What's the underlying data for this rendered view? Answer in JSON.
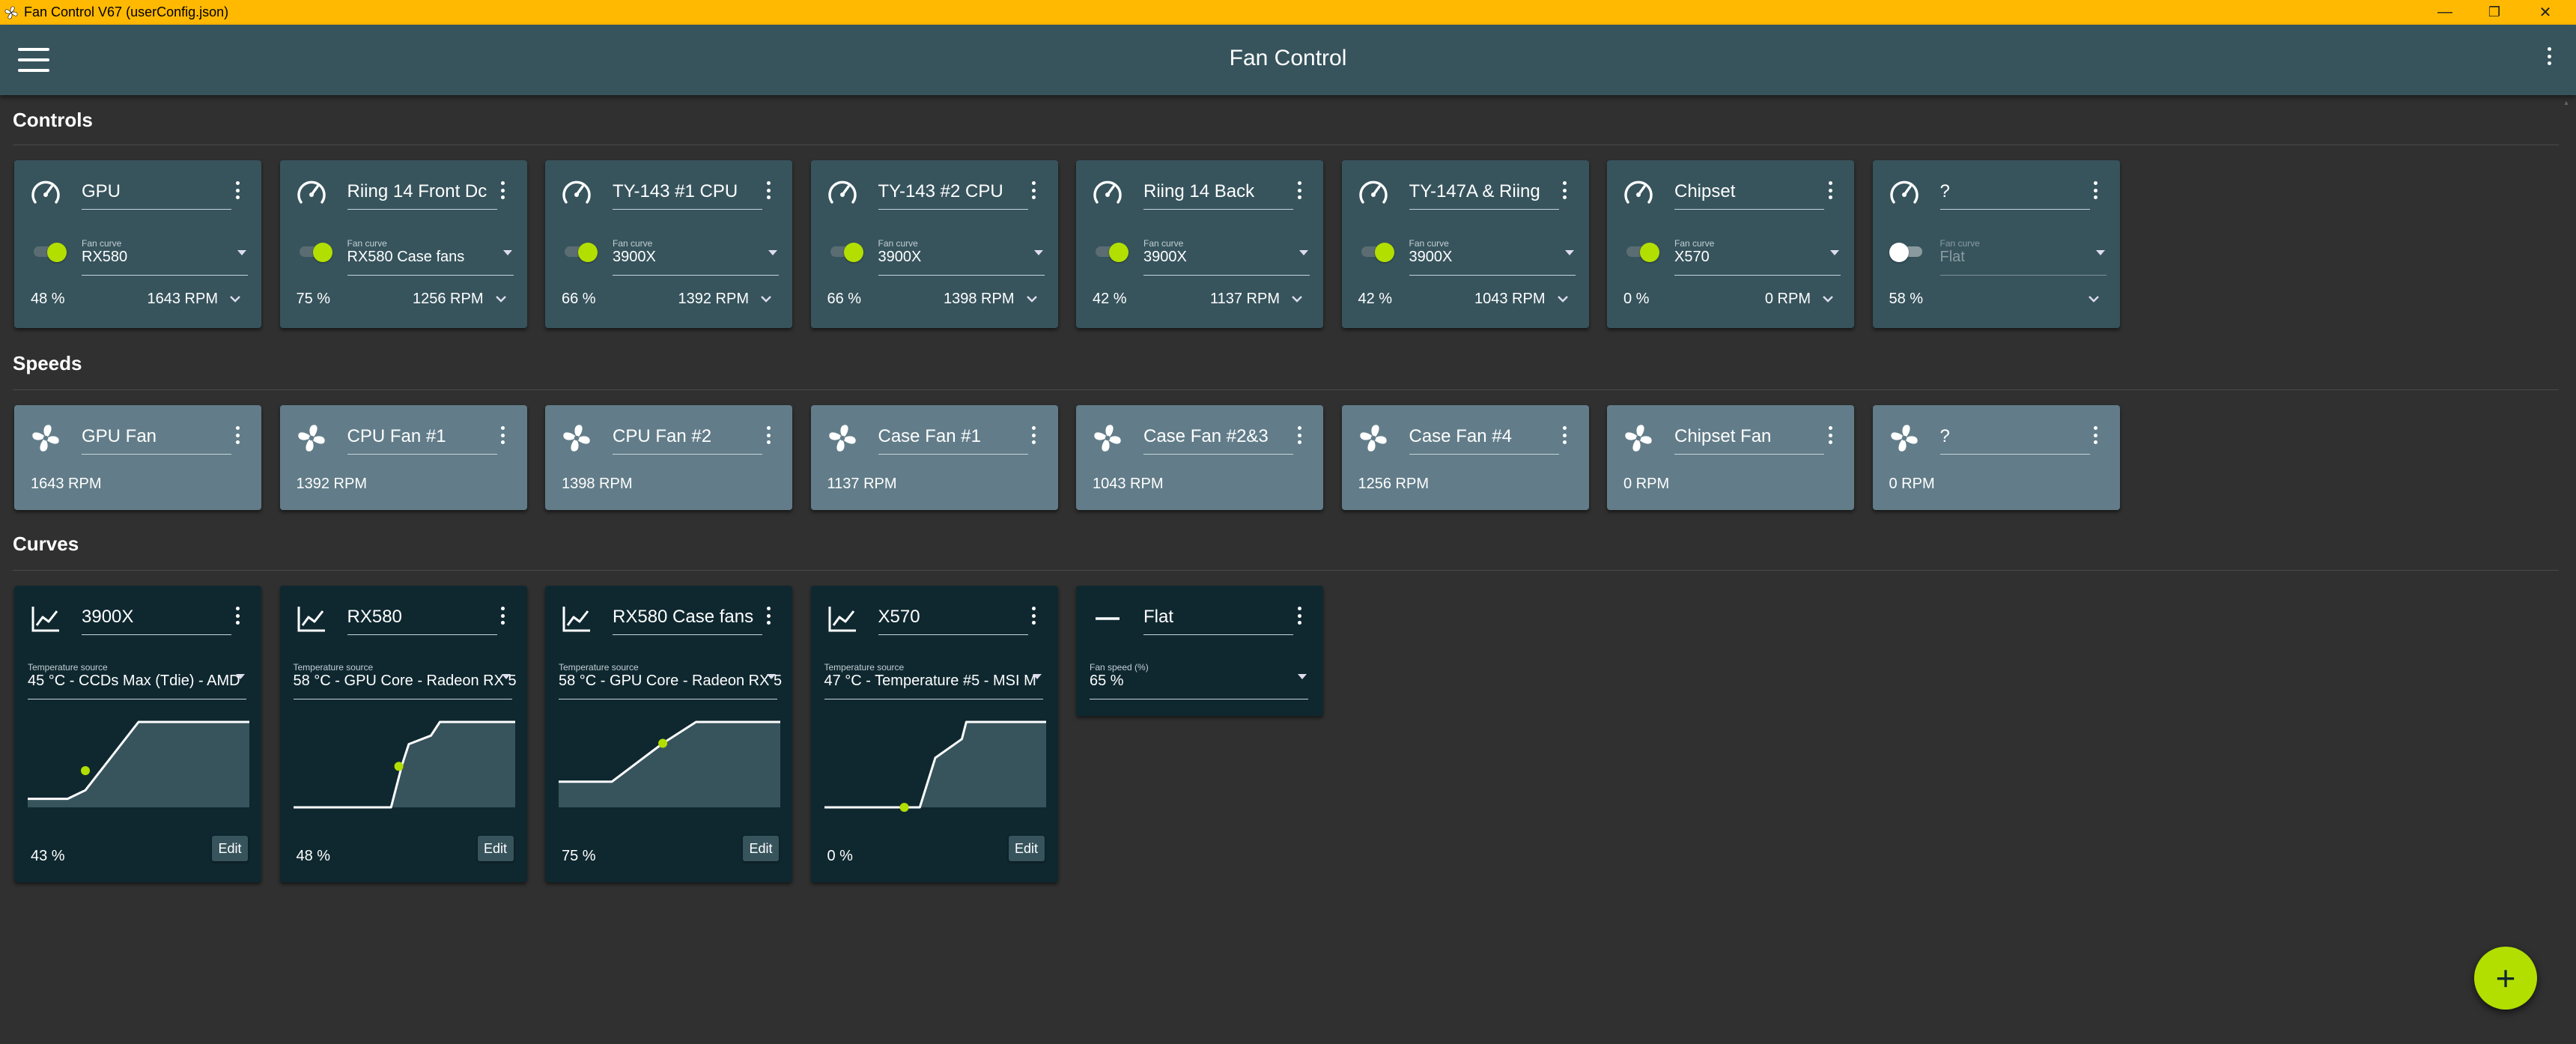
{
  "window": {
    "title": "Fan Control V67 (userConfig.json)",
    "minimize": "—",
    "maximize": "❐",
    "close": "✕"
  },
  "appbar": {
    "title": "Fan Control"
  },
  "sections": {
    "controls": "Controls",
    "speeds": "Speeds",
    "curves": "Curves"
  },
  "controls": [
    {
      "name": "GPU",
      "curve_label": "Fan curve",
      "curve": "RX580",
      "percent": "48 %",
      "rpm": "1643 RPM",
      "enabled": true
    },
    {
      "name": "Riing 14 Front Dc",
      "curve_label": "Fan curve",
      "curve": "RX580 Case fans",
      "percent": "75 %",
      "rpm": "1256 RPM",
      "enabled": true
    },
    {
      "name": "TY-143 #1 CPU",
      "curve_label": "Fan curve",
      "curve": "3900X",
      "percent": "66 %",
      "rpm": "1392 RPM",
      "enabled": true
    },
    {
      "name": "TY-143 #2 CPU",
      "curve_label": "Fan curve",
      "curve": "3900X",
      "percent": "66 %",
      "rpm": "1398 RPM",
      "enabled": true
    },
    {
      "name": "Riing 14 Back",
      "curve_label": "Fan curve",
      "curve": "3900X",
      "percent": "42 %",
      "rpm": "1137 RPM",
      "enabled": true
    },
    {
      "name": "TY-147A & Riing",
      "curve_label": "Fan curve",
      "curve": "3900X",
      "percent": "42 %",
      "rpm": "1043 RPM",
      "enabled": true
    },
    {
      "name": "Chipset",
      "curve_label": "Fan curve",
      "curve": "X570",
      "percent": "0 %",
      "rpm": "0 RPM",
      "enabled": true
    },
    {
      "name": "?",
      "curve_label": "Fan curve",
      "curve": "Flat",
      "percent": "58 %",
      "rpm": "",
      "enabled": false
    }
  ],
  "speeds": [
    {
      "name": "GPU Fan",
      "rpm": "1643 RPM"
    },
    {
      "name": "CPU Fan #1",
      "rpm": "1392 RPM"
    },
    {
      "name": "CPU Fan #2",
      "rpm": "1398 RPM"
    },
    {
      "name": "Case Fan #1",
      "rpm": "1137 RPM"
    },
    {
      "name": "Case Fan #2&3",
      "rpm": "1043 RPM"
    },
    {
      "name": "Case Fan #4",
      "rpm": "1256 RPM"
    },
    {
      "name": "Chipset Fan",
      "rpm": "0 RPM"
    },
    {
      "name": "?",
      "rpm": "0 RPM"
    }
  ],
  "curves": [
    {
      "name": "3900X",
      "source_label": "Temperature source",
      "source": "45 °C - CCDs Max (Tdie) - AMD",
      "percent": "43 %",
      "edit": "Edit",
      "points": [
        [
          0,
          0.1
        ],
        [
          0.18,
          0.1
        ],
        [
          0.26,
          0.2
        ],
        [
          0.5,
          1.0
        ],
        [
          1.0,
          1.0
        ]
      ],
      "marker": [
        0.26,
        0.43
      ]
    },
    {
      "name": "RX580",
      "source_label": "Temperature source",
      "source": "58 °C - GPU Core - Radeon RX 5",
      "percent": "48 %",
      "edit": "Edit",
      "points": [
        [
          0,
          0
        ],
        [
          0.44,
          0
        ],
        [
          0.49,
          0.5
        ],
        [
          0.52,
          0.74
        ],
        [
          0.62,
          0.84
        ],
        [
          0.66,
          1.0
        ],
        [
          1.0,
          1.0
        ]
      ],
      "marker": [
        0.475,
        0.48
      ]
    },
    {
      "name": "RX580 Case fans",
      "source_label": "Temperature source",
      "source": "58 °C - GPU Core - Radeon RX 5",
      "percent": "75 %",
      "edit": "Edit",
      "points": [
        [
          0,
          0.3
        ],
        [
          0.24,
          0.3
        ],
        [
          0.47,
          0.75
        ],
        [
          0.62,
          1.0
        ],
        [
          1.0,
          1.0
        ]
      ],
      "marker": [
        0.47,
        0.75
      ]
    },
    {
      "name": "X570",
      "source_label": "Temperature source",
      "source": "47 °C - Temperature #5 - MSI M",
      "percent": "0 %",
      "edit": "Edit",
      "points": [
        [
          0,
          0
        ],
        [
          0.43,
          0
        ],
        [
          0.5,
          0.58
        ],
        [
          0.62,
          0.8
        ],
        [
          0.64,
          1.0
        ],
        [
          1.0,
          1.0
        ]
      ],
      "marker": [
        0.36,
        0.0
      ]
    }
  ],
  "flat_curve": {
    "name": "Flat",
    "speed_label": "Fan speed (%)",
    "speed": "65 %"
  },
  "fab": {
    "label": "+"
  },
  "colors": {
    "accent": "#b2df00",
    "titlebar": "#ffb900",
    "appbar": "#37545d",
    "control_card": "#37545d",
    "speed_card": "#627d89",
    "curve_card": "#0f2830"
  }
}
